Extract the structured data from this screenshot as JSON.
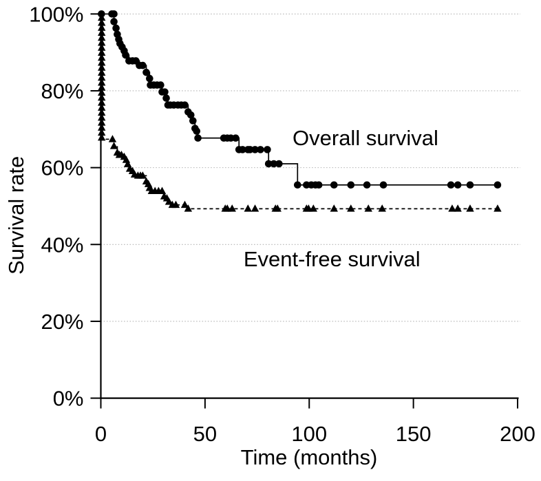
{
  "chart_data": {
    "type": "line",
    "subtype": "kaplan-meier-step",
    "title": "",
    "xlabel": "Time (months)",
    "ylabel": "Survival rate",
    "xlim": [
      0,
      200
    ],
    "ylim": [
      0,
      100
    ],
    "x_ticks": [
      0,
      50,
      100,
      150,
      200
    ],
    "x_tick_labels": [
      "0",
      "50",
      "100",
      "150",
      "200"
    ],
    "y_ticks": [
      0,
      20,
      40,
      60,
      80,
      100
    ],
    "y_tick_labels": [
      "0%",
      "20%",
      "40%",
      "60%",
      "80%",
      "100%"
    ],
    "grid": "horizontal-dotted",
    "grid_color": "#b5b5b5",
    "axis_color": "#000000",
    "legend_position": "none",
    "annotations": [
      {
        "text": "Overall survival",
        "t": 92,
        "pct": 67.5
      },
      {
        "text": "Event-free survival",
        "t": 68.5,
        "pct": 36
      }
    ],
    "series": [
      {
        "name": "Overall survival",
        "marker": "circle",
        "line_style": "solid",
        "color": "#000000",
        "end_time": 191,
        "steps": [
          [
            0,
            100
          ],
          [
            6.3,
            98
          ],
          [
            7.3,
            96.3
          ],
          [
            7.9,
            94.7
          ],
          [
            8.6,
            93.4
          ],
          [
            9.2,
            92.3
          ],
          [
            10.2,
            91.4
          ],
          [
            11.2,
            90.4
          ],
          [
            11.9,
            89.3
          ],
          [
            13.5,
            87.8
          ],
          [
            18.5,
            86.6
          ],
          [
            21.8,
            84.8
          ],
          [
            23.4,
            83.2
          ],
          [
            23.8,
            81.5
          ],
          [
            29.4,
            79.7
          ],
          [
            31.4,
            78.1
          ],
          [
            32.2,
            76.3
          ],
          [
            41.9,
            74.5
          ],
          [
            43.2,
            73.7
          ],
          [
            44.2,
            72.2
          ],
          [
            45.2,
            70.2
          ],
          [
            46,
            69.5
          ],
          [
            46.6,
            67.7
          ],
          [
            66.3,
            64.7
          ],
          [
            80.5,
            61
          ],
          [
            94.4,
            55.5
          ]
        ],
        "markers": [
          [
            0.3,
            100
          ],
          [
            5.3,
            100
          ],
          [
            6.3,
            100
          ],
          [
            6.3,
            98
          ],
          [
            7.3,
            96.3
          ],
          [
            7.9,
            94.7
          ],
          [
            8.6,
            93.4
          ],
          [
            9.2,
            92.3
          ],
          [
            10.2,
            91.4
          ],
          [
            11.2,
            90.4
          ],
          [
            11.9,
            89.3
          ],
          [
            13.5,
            87.8
          ],
          [
            15.2,
            87.8
          ],
          [
            16.8,
            87.8
          ],
          [
            18.5,
            86.6
          ],
          [
            20.1,
            86.6
          ],
          [
            21.8,
            84.8
          ],
          [
            23.4,
            83.2
          ],
          [
            23.8,
            81.5
          ],
          [
            25.4,
            81.5
          ],
          [
            27,
            81.5
          ],
          [
            28.7,
            81.5
          ],
          [
            29.4,
            79.7
          ],
          [
            30.7,
            79.7
          ],
          [
            31.4,
            78.1
          ],
          [
            32.2,
            76.3
          ],
          [
            33.3,
            76.3
          ],
          [
            35,
            76.3
          ],
          [
            37,
            76.3
          ],
          [
            38.6,
            76.3
          ],
          [
            40.3,
            76.3
          ],
          [
            41.9,
            74.5
          ],
          [
            43.2,
            73.7
          ],
          [
            44.2,
            72.2
          ],
          [
            45.2,
            70.2
          ],
          [
            46,
            69.5
          ],
          [
            46.6,
            67.7
          ],
          [
            59,
            67.7
          ],
          [
            60.7,
            67.7
          ],
          [
            62.4,
            67.7
          ],
          [
            64.7,
            67.7
          ],
          [
            66.3,
            64.7
          ],
          [
            68,
            64.7
          ],
          [
            70.6,
            64.7
          ],
          [
            71.6,
            64.7
          ],
          [
            74,
            64.7
          ],
          [
            76.6,
            64.7
          ],
          [
            79.9,
            64.7
          ],
          [
            80.5,
            61
          ],
          [
            83,
            61
          ],
          [
            85.5,
            61
          ],
          [
            94.4,
            55.5
          ],
          [
            98.7,
            55.5
          ],
          [
            101,
            55.5
          ],
          [
            103,
            55.5
          ],
          [
            104.6,
            55.5
          ],
          [
            111.9,
            55.5
          ],
          [
            120,
            55.5
          ],
          [
            127.7,
            55.5
          ],
          [
            135.6,
            55.5
          ],
          [
            168,
            55.5
          ],
          [
            171.3,
            55.5
          ],
          [
            177.2,
            55.5
          ],
          [
            190.4,
            55.5
          ]
        ]
      },
      {
        "name": "Event-free survival",
        "marker": "triangle",
        "line_style": "dashed",
        "color": "#000000",
        "end_time": 191,
        "steps": [
          [
            0,
            100
          ],
          [
            0.4,
            67.4
          ],
          [
            6.3,
            65.6
          ],
          [
            7.9,
            63.9
          ],
          [
            8.9,
            63.3
          ],
          [
            11.2,
            62.8
          ],
          [
            12.2,
            62
          ],
          [
            12.9,
            60.9
          ],
          [
            13.9,
            59.7
          ],
          [
            15.2,
            59.1
          ],
          [
            16.2,
            58.2
          ],
          [
            17.8,
            57.9
          ],
          [
            21.8,
            56.4
          ],
          [
            22.8,
            55.7
          ],
          [
            23.4,
            54.7
          ],
          [
            24.4,
            53.9
          ],
          [
            30.4,
            52.5
          ],
          [
            31.7,
            52
          ],
          [
            32.7,
            51.1
          ],
          [
            34.3,
            50.3
          ],
          [
            41.9,
            49.3
          ]
        ],
        "markers": [
          [
            0.4,
            99
          ],
          [
            0.4,
            97.7
          ],
          [
            0.4,
            96.4
          ],
          [
            0.4,
            95.1
          ],
          [
            0.4,
            93.8
          ],
          [
            0.4,
            92.5
          ],
          [
            0.4,
            91.2
          ],
          [
            0.4,
            89.9
          ],
          [
            0.4,
            88.6
          ],
          [
            0.4,
            87.3
          ],
          [
            0.4,
            86
          ],
          [
            0.4,
            84.7
          ],
          [
            0.4,
            83.4
          ],
          [
            0.4,
            82.1
          ],
          [
            0.4,
            80.8
          ],
          [
            0.4,
            79.5
          ],
          [
            0.4,
            78.2
          ],
          [
            0.4,
            76.9
          ],
          [
            0.4,
            75.6
          ],
          [
            0.4,
            74.3
          ],
          [
            0.4,
            73
          ],
          [
            0.4,
            71.7
          ],
          [
            0.4,
            70.4
          ],
          [
            0.4,
            69.1
          ],
          [
            0.4,
            67.8
          ],
          [
            5.6,
            67.4
          ],
          [
            6.3,
            65.6
          ],
          [
            7.9,
            63.9
          ],
          [
            8.9,
            63.3
          ],
          [
            9.9,
            63.3
          ],
          [
            11.2,
            62.8
          ],
          [
            12.2,
            62
          ],
          [
            12.9,
            60.9
          ],
          [
            13.9,
            59.7
          ],
          [
            15.2,
            59.1
          ],
          [
            16.2,
            58.2
          ],
          [
            17.8,
            57.9
          ],
          [
            19,
            57.9
          ],
          [
            20.1,
            57.9
          ],
          [
            21.8,
            56.4
          ],
          [
            22.8,
            55.7
          ],
          [
            23.4,
            54.7
          ],
          [
            24.4,
            53.9
          ],
          [
            26,
            53.9
          ],
          [
            27.7,
            53.9
          ],
          [
            29.4,
            53.9
          ],
          [
            30.4,
            52.5
          ],
          [
            31.7,
            52
          ],
          [
            32.7,
            51.1
          ],
          [
            34.3,
            50.3
          ],
          [
            36,
            50.3
          ],
          [
            40.3,
            50.3
          ],
          [
            41.9,
            49.3
          ],
          [
            59.7,
            49.3
          ],
          [
            60.7,
            49.3
          ],
          [
            63,
            49.3
          ],
          [
            70.6,
            49.3
          ],
          [
            74,
            49.3
          ],
          [
            83.8,
            49.3
          ],
          [
            84.8,
            49.3
          ],
          [
            98.7,
            49.3
          ],
          [
            99.7,
            49.3
          ],
          [
            102,
            49.3
          ],
          [
            111.9,
            49.3
          ],
          [
            120,
            49.3
          ],
          [
            128.4,
            49.3
          ],
          [
            135,
            49.3
          ],
          [
            168.6,
            49.3
          ],
          [
            171.3,
            49.3
          ],
          [
            177.2,
            49.3
          ],
          [
            190.4,
            49.3
          ]
        ]
      }
    ]
  }
}
